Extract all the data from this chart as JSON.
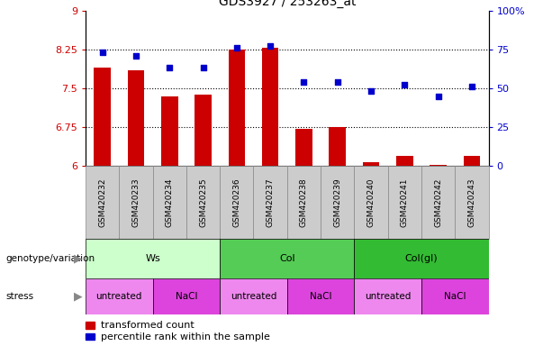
{
  "title": "GDS3927 / 253263_at",
  "samples": [
    "GSM420232",
    "GSM420233",
    "GSM420234",
    "GSM420235",
    "GSM420236",
    "GSM420237",
    "GSM420238",
    "GSM420239",
    "GSM420240",
    "GSM420241",
    "GSM420242",
    "GSM420243"
  ],
  "transformed_count": [
    7.9,
    7.85,
    7.35,
    7.38,
    8.25,
    8.28,
    6.72,
    6.75,
    6.08,
    6.2,
    6.03,
    6.2
  ],
  "percentile_rank": [
    73,
    71,
    63,
    63,
    76,
    77,
    54,
    54,
    48,
    52,
    45,
    51
  ],
  "bar_color": "#cc0000",
  "dot_color": "#0000cc",
  "ylim_left": [
    6,
    9
  ],
  "ylim_right": [
    0,
    100
  ],
  "yticks_left": [
    6,
    6.75,
    7.5,
    8.25,
    9
  ],
  "yticks_right": [
    0,
    25,
    50,
    75,
    100
  ],
  "ytick_labels_left": [
    "6",
    "6.75",
    "7.5",
    "8.25",
    "9"
  ],
  "ytick_labels_right": [
    "0",
    "25",
    "50",
    "75",
    "100%"
  ],
  "hlines": [
    6.75,
    7.5,
    8.25
  ],
  "genotype_groups": [
    {
      "label": "Ws",
      "start": 0,
      "end": 3,
      "color": "#ccffcc"
    },
    {
      "label": "Col",
      "start": 4,
      "end": 7,
      "color": "#55cc55"
    },
    {
      "label": "Col(gl)",
      "start": 8,
      "end": 11,
      "color": "#33bb33"
    }
  ],
  "stress_groups": [
    {
      "label": "untreated",
      "start": 0,
      "end": 1,
      "color": "#ee88ee"
    },
    {
      "label": "NaCl",
      "start": 2,
      "end": 3,
      "color": "#dd44dd"
    },
    {
      "label": "untreated",
      "start": 4,
      "end": 5,
      "color": "#ee88ee"
    },
    {
      "label": "NaCl",
      "start": 6,
      "end": 7,
      "color": "#dd44dd"
    },
    {
      "label": "untreated",
      "start": 8,
      "end": 9,
      "color": "#ee88ee"
    },
    {
      "label": "NaCl",
      "start": 10,
      "end": 11,
      "color": "#dd44dd"
    }
  ],
  "legend_red_label": "transformed count",
  "legend_blue_label": "percentile rank within the sample",
  "genotype_label": "genotype/variation",
  "stress_label": "stress",
  "left_axis_color": "#cc0000",
  "right_axis_color": "#0000cc",
  "sample_bg_color": "#cccccc",
  "sample_border_color": "#888888"
}
